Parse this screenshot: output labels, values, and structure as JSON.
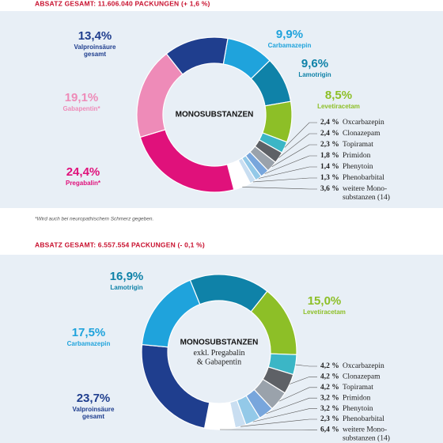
{
  "chart_data": [
    {
      "type": "donut",
      "title": "ABSATZ GESAMT: 11.606.040 PACKUNGEN (+ 1,6 %)",
      "center_title": "MONOSUBSTANZEN",
      "note": "*Wird auch bei neuropathischem Schmerz gegeben.",
      "categories": [
        "Carbamazepin",
        "Lamotrigin",
        "Levetiracetam",
        "Oxcarbazepin",
        "Clonazepam",
        "Topiramat",
        "Primidon",
        "Phenytoin",
        "Phenobarbital",
        "weitere Mono-\nsubstanzen (14)",
        "Pregabalin*",
        "Gabapentin*",
        "Valproinsäure\ngesamt"
      ],
      "values": [
        9.9,
        9.6,
        8.5,
        2.4,
        2.4,
        2.3,
        1.8,
        1.4,
        1.3,
        3.6,
        24.4,
        19.1,
        13.4
      ],
      "value_labels": [
        "9,9%",
        "9,6%",
        "8,5%",
        "2,4 %",
        "2,4 %",
        "2,3 %",
        "1,8 %",
        "1,4 %",
        "1,3 %",
        "3,6 %",
        "24,4%",
        "19,1%",
        "13,4%"
      ],
      "colors": [
        "#1fa3dc",
        "#0f82a8",
        "#8dbf27",
        "#3bb6c6",
        "#5e6166",
        "#9aa2ab",
        "#78a6dc",
        "#93c9e8",
        "#c9def1",
        "#ffffff",
        "#e0117b",
        "#ee8bb8",
        "#1f3e8e"
      ]
    },
    {
      "type": "donut",
      "title": "ABSATZ GESAMT: 6.557.554 PACKUNGEN (- 0,1 %)",
      "center_title": "MONOSUBSTANZEN",
      "center_subtitle": "exkl. Pregabalin\n& Gabapentin",
      "categories": [
        "Lamotrigin",
        "Levetiracetam",
        "Oxcarbazepin",
        "Clonazepam",
        "Topiramat",
        "Primidon",
        "Phenytoin",
        "Phenobarbital",
        "weitere Mono-\nsubstanzen (14)",
        "Valproinsäure\ngesamt",
        "Carbamazepin"
      ],
      "values": [
        16.9,
        15.0,
        4.2,
        4.2,
        4.2,
        3.2,
        3.2,
        2.3,
        6.4,
        23.7,
        17.5
      ],
      "value_labels": [
        "16,9%",
        "15,0%",
        "4,2 %",
        "4,2 %",
        "4,2 %",
        "3,2 %",
        "3,2 %",
        "2,3 %",
        "6,4 %",
        "23,7%",
        "17,5%"
      ],
      "colors": [
        "#0f82a8",
        "#8dbf27",
        "#3bb6c6",
        "#5e6166",
        "#9aa2ab",
        "#78a6dc",
        "#93c9e8",
        "#c9def1",
        "#ffffff",
        "#1f3e8e",
        "#1fa3dc"
      ]
    }
  ]
}
